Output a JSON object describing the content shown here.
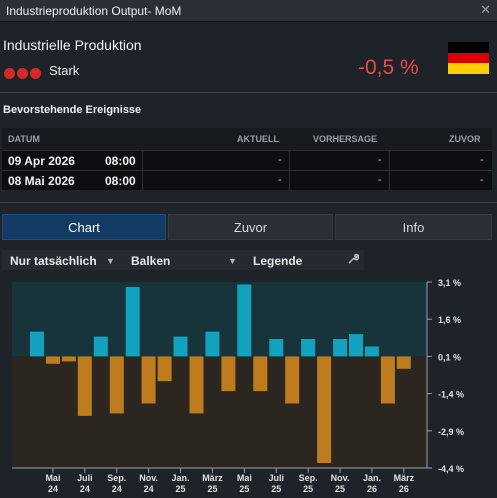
{
  "window": {
    "title": "Industrieproduktion Output- MoM",
    "close_icon": "close-icon"
  },
  "header": {
    "title": "Industrielle Produktion",
    "impact_label": "Stark",
    "impact_color": "#d42a2a",
    "value": "-0,5 %",
    "value_color": "#e8494a",
    "flag": {
      "country": "germany-flag-icon",
      "colors": [
        "#000000",
        "#dd0000",
        "#ffce00"
      ]
    }
  },
  "events": {
    "title": "Bevorstehende Ereignisse",
    "columns": [
      "DATUM",
      "AKTUELL",
      "VORHERSAGE",
      "ZUVOR"
    ],
    "rows": [
      {
        "date": "09 Apr 2026",
        "time": "08:00",
        "actual": "-",
        "forecast": "-",
        "previous": "-"
      },
      {
        "date": "08 Mai 2026",
        "time": "08:00",
        "actual": "-",
        "forecast": "-",
        "previous": "-"
      }
    ]
  },
  "tabs": [
    {
      "label": "Chart",
      "active": true
    },
    {
      "label": "Zuvor",
      "active": false
    },
    {
      "label": "Info",
      "active": false
    }
  ],
  "toolbar": {
    "filter": "Nur tatsächlich",
    "chart_type": "Balken",
    "legend": "Legende",
    "wrench_icon": "wrench-icon"
  },
  "chart_data": {
    "type": "bar",
    "ylim": [
      -4.4,
      3.1
    ],
    "y_ticks": [
      "3,1 %",
      "1,6 %",
      "0,1 %",
      "-1,4 %",
      "-2,9 %",
      "-4,4 %"
    ],
    "y_tick_values": [
      3.1,
      1.6,
      0.1,
      -1.4,
      -2.9,
      -4.4
    ],
    "baseline": 0.1,
    "x_tick_labels": [
      [
        "Mai",
        "24"
      ],
      [
        "Juli",
        "24"
      ],
      [
        "Sep.",
        "24"
      ],
      [
        "Nov.",
        "24"
      ],
      [
        "Jan.",
        "25"
      ],
      [
        "März",
        "25"
      ],
      [
        "Mai",
        "25"
      ],
      [
        "Juli",
        "25"
      ],
      [
        "Sep.",
        "25"
      ],
      [
        "Nov.",
        "25"
      ],
      [
        "Jan.",
        "26"
      ],
      [
        "März",
        "26"
      ]
    ],
    "values": [
      1.1,
      -0.2,
      -0.1,
      -2.3,
      0.9,
      -2.2,
      2.9,
      -1.8,
      -0.9,
      0.9,
      -2.2,
      1.1,
      -1.3,
      3.0,
      -1.3,
      0.8,
      -1.8,
      0.8,
      -4.2,
      0.8,
      1.0,
      0.5,
      -1.8,
      -0.4
    ],
    "colors": {
      "positive": "#12a2bd",
      "negative": "#bd7c1e"
    },
    "grid": false
  }
}
